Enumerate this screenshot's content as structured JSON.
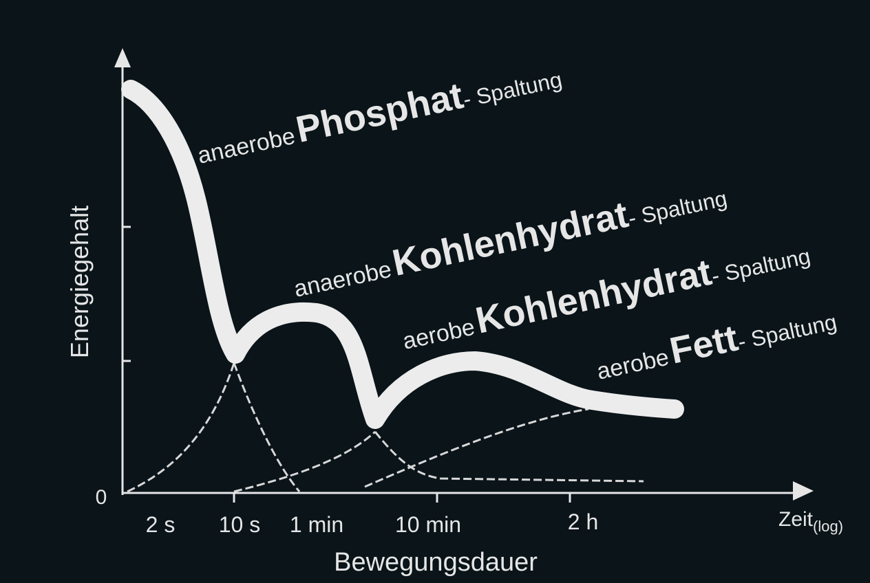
{
  "axes": {
    "y_label": "Energiegehalt",
    "y_zero": "0",
    "x_title": "Bewegungsdauer",
    "x_label": "Zeit",
    "x_label_sub": "(log)",
    "x_ticks": [
      "2 s",
      "10 s",
      "1 min",
      "10 min",
      "2 h"
    ]
  },
  "labels": [
    {
      "prefix": "anaerobe",
      "emphasis": "Phosphat",
      "suffix": "- Spaltung"
    },
    {
      "prefix": "anaerobe",
      "emphasis": "Kohlenhydrat",
      "suffix": "- Spaltung"
    },
    {
      "prefix": "aerobe",
      "emphasis": "Kohlenhydrat",
      "suffix": "- Spaltung"
    },
    {
      "prefix": "aerobe",
      "emphasis": "Fett",
      "suffix": "- Spaltung"
    }
  ]
}
